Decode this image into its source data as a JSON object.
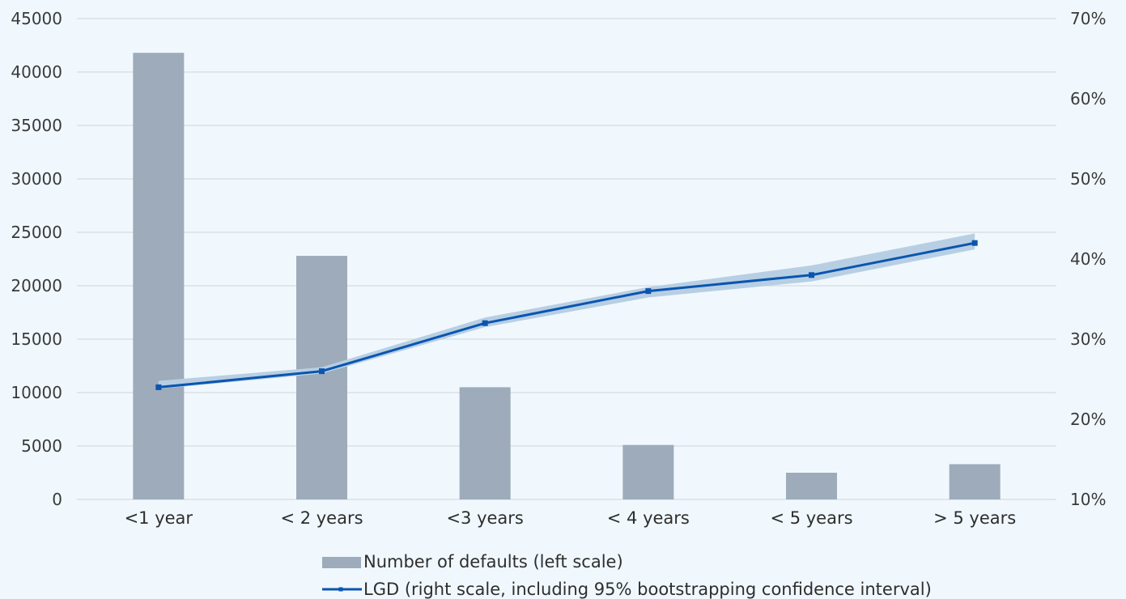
{
  "chart_data": {
    "type": "bar",
    "categories": [
      "<1 year",
      "< 2 years",
      "<3 years",
      "< 4 years",
      "< 5 years",
      "> 5 years"
    ],
    "series": [
      {
        "name": "Number of defaults (left scale)",
        "type": "bar",
        "axis": "left",
        "values": [
          41800,
          22800,
          10500,
          5100,
          2500,
          3300
        ]
      },
      {
        "name": "LGD (right scale, including 95% bootstrapping confidence interval)",
        "type": "line",
        "axis": "right",
        "values": [
          0.24,
          0.26,
          0.32,
          0.36,
          0.38,
          0.42
        ],
        "ci_lower": [
          0.238,
          0.257,
          0.315,
          0.352,
          0.372,
          0.412
        ],
        "ci_upper": [
          0.248,
          0.265,
          0.327,
          0.365,
          0.392,
          0.432
        ]
      }
    ],
    "left_axis": {
      "ylim": [
        0,
        45000
      ],
      "ticks": [
        "0",
        "5000",
        "10000",
        "15000",
        "20000",
        "25000",
        "30000",
        "35000",
        "40000",
        "45000"
      ]
    },
    "right_axis": {
      "ylim": [
        0.1,
        0.7
      ],
      "ticks": [
        "10%",
        "20%",
        "30%",
        "40%",
        "50%",
        "60%",
        "70%"
      ]
    },
    "grid": true,
    "legend_position": "bottom",
    "colors": {
      "bar": "#9dabba",
      "line": "#0a55b0",
      "band": "#b8cfe3",
      "grid": "#d6dadd"
    }
  }
}
